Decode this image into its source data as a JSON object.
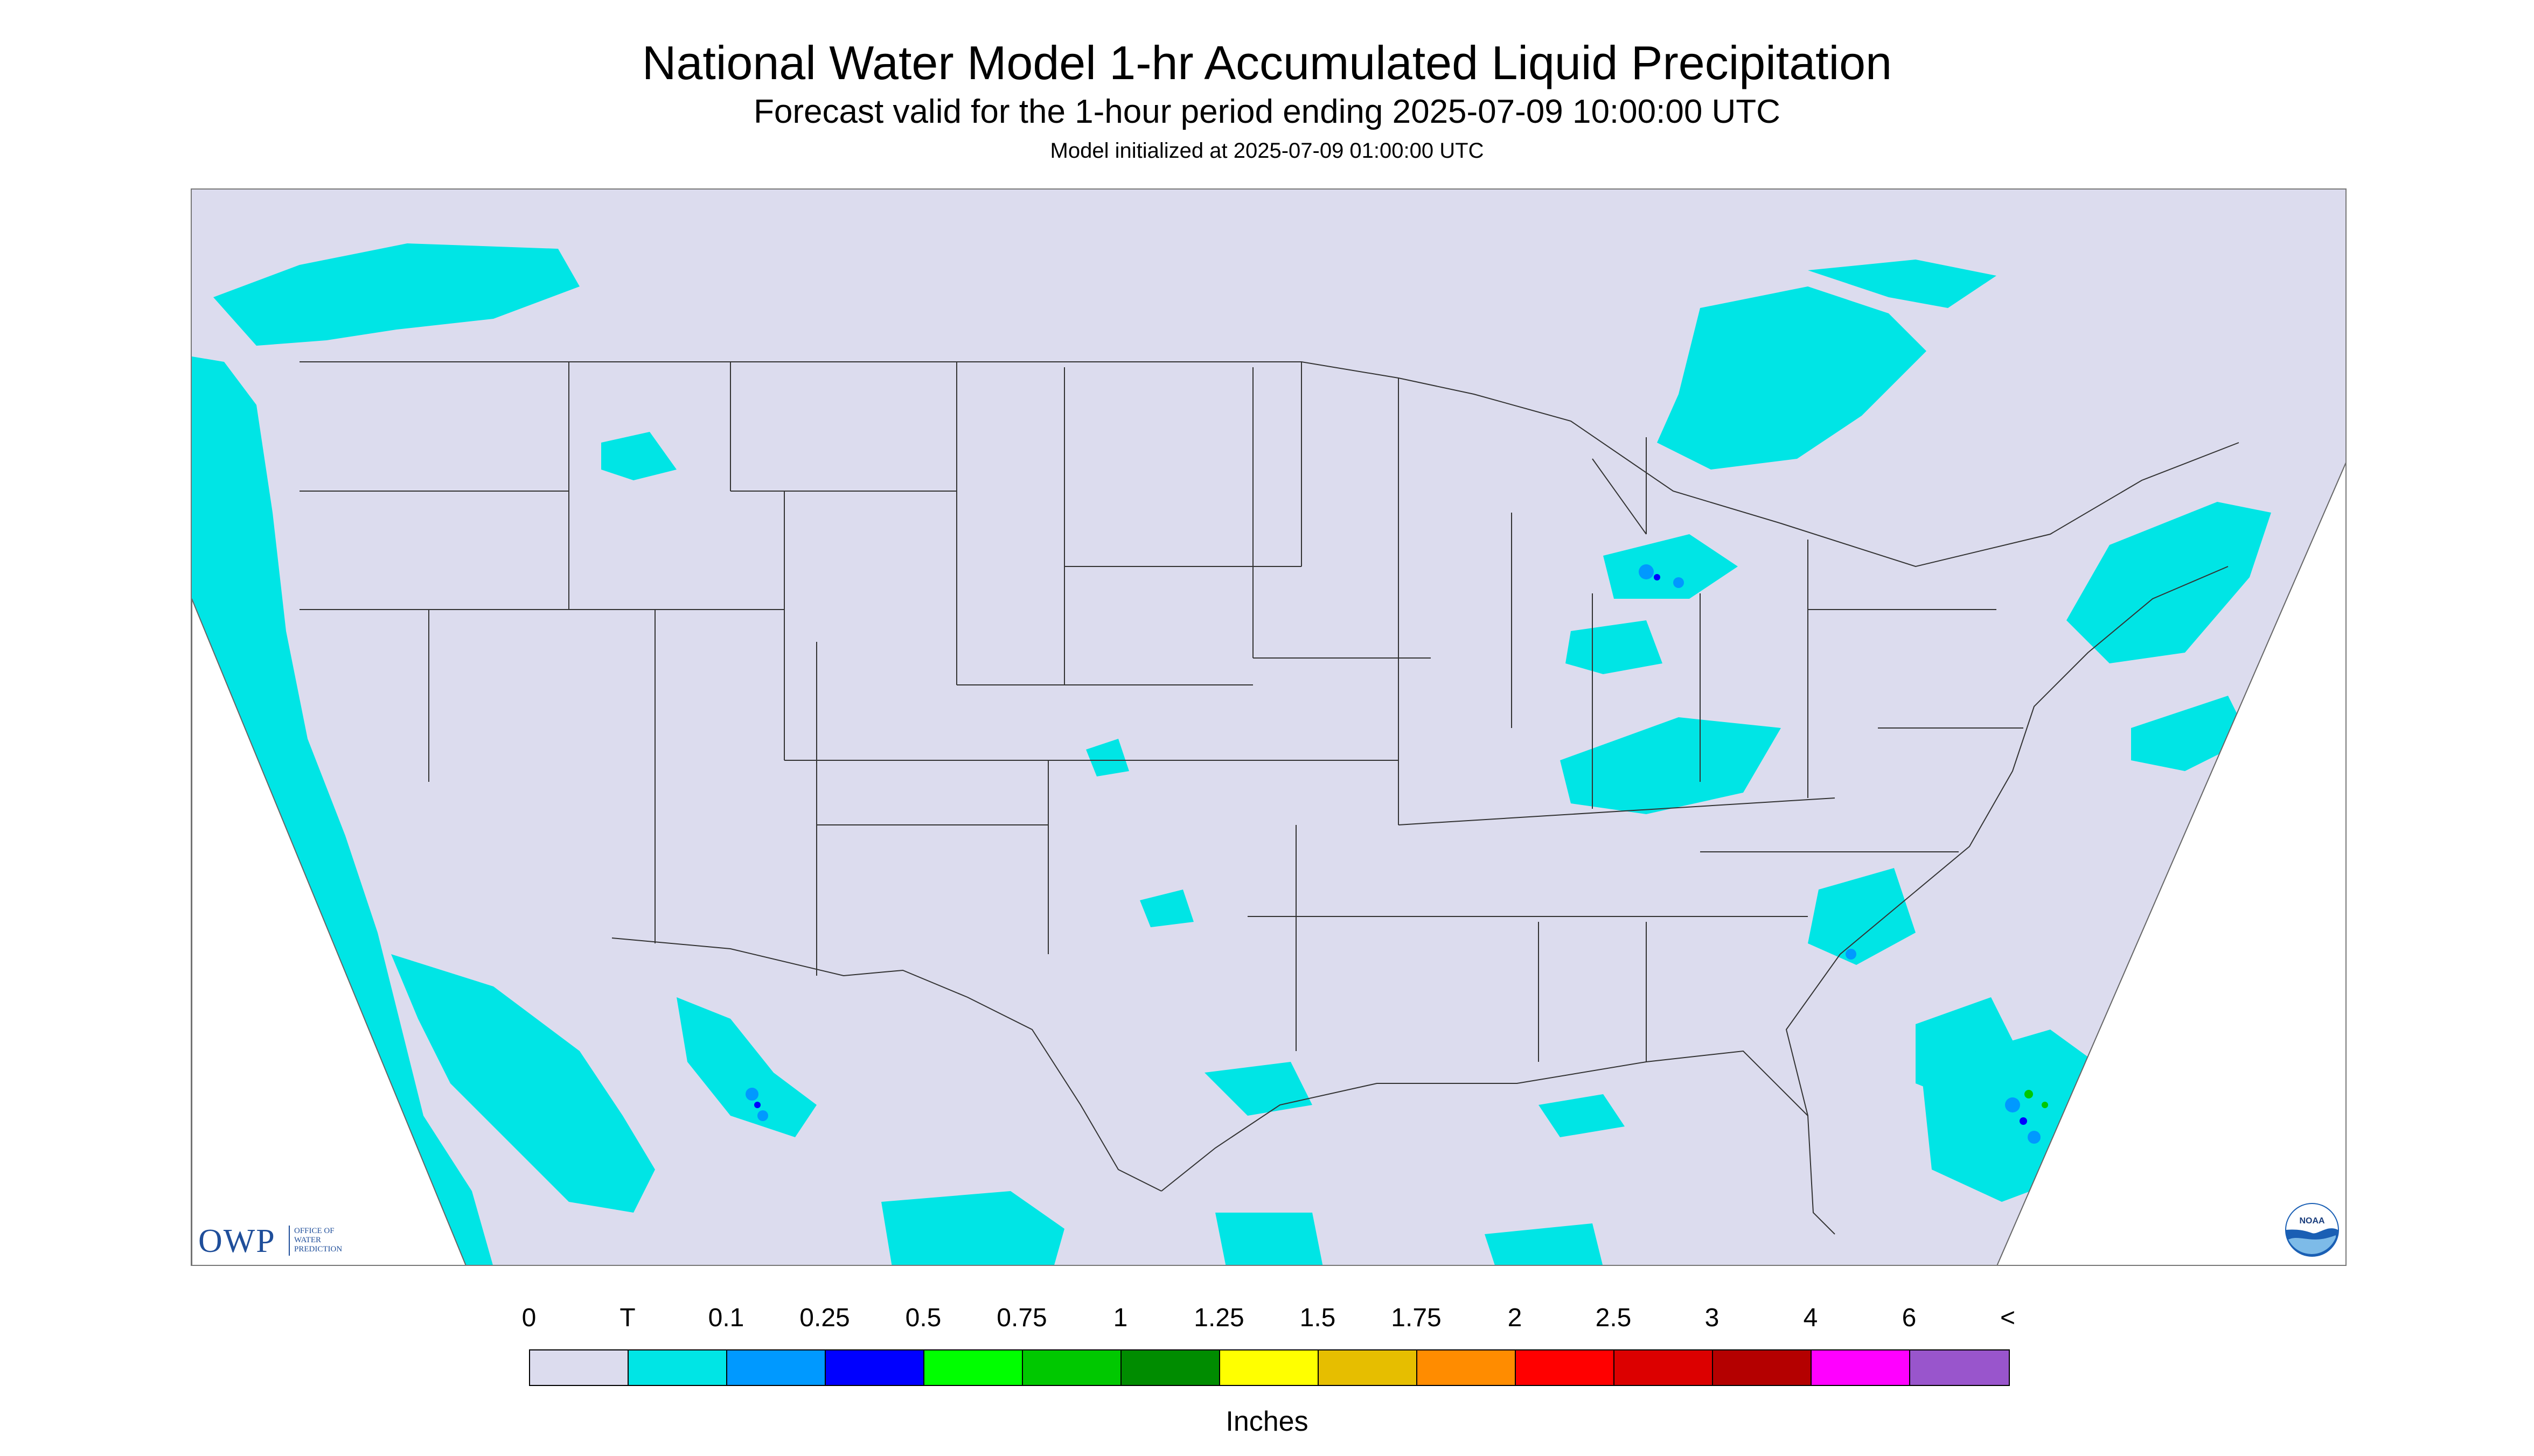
{
  "header": {
    "title": "National Water Model 1-hr Accumulated Liquid Precipitation",
    "subtitle": "Forecast valid for the 1-hour period ending 2025-07-09 10:00:00 UTC",
    "init_line": "Model initialized at 2025-07-09 01:00:00 UTC"
  },
  "map": {
    "region": "CONUS",
    "background_color": "#dcdcee",
    "outside_domain_color": "#ffffff",
    "boundary_color": "#333333",
    "precip_color_trace": "#00e5e5",
    "precip_color_0_1": "#0099ff",
    "precip_color_0_25": "#0000ff"
  },
  "logos": {
    "owp_letters": "OWP",
    "owp_full": "OFFICE OF\nWATER\nPREDICTION",
    "noaa_text": "NOAA"
  },
  "legend": {
    "labels": [
      "0",
      "T",
      "0.1",
      "0.25",
      "0.5",
      "0.75",
      "1",
      "1.25",
      "1.5",
      "1.75",
      "2",
      "2.5",
      "3",
      "4",
      "6",
      "<"
    ],
    "colors": [
      "#dcdcee",
      "#00e5e5",
      "#0099ff",
      "#0000ff",
      "#00ff00",
      "#00c800",
      "#008c00",
      "#ffff00",
      "#e6be00",
      "#ff8c00",
      "#ff0000",
      "#dc0000",
      "#b40000",
      "#ff00ff",
      "#9955cc"
    ],
    "units": "Inches"
  }
}
